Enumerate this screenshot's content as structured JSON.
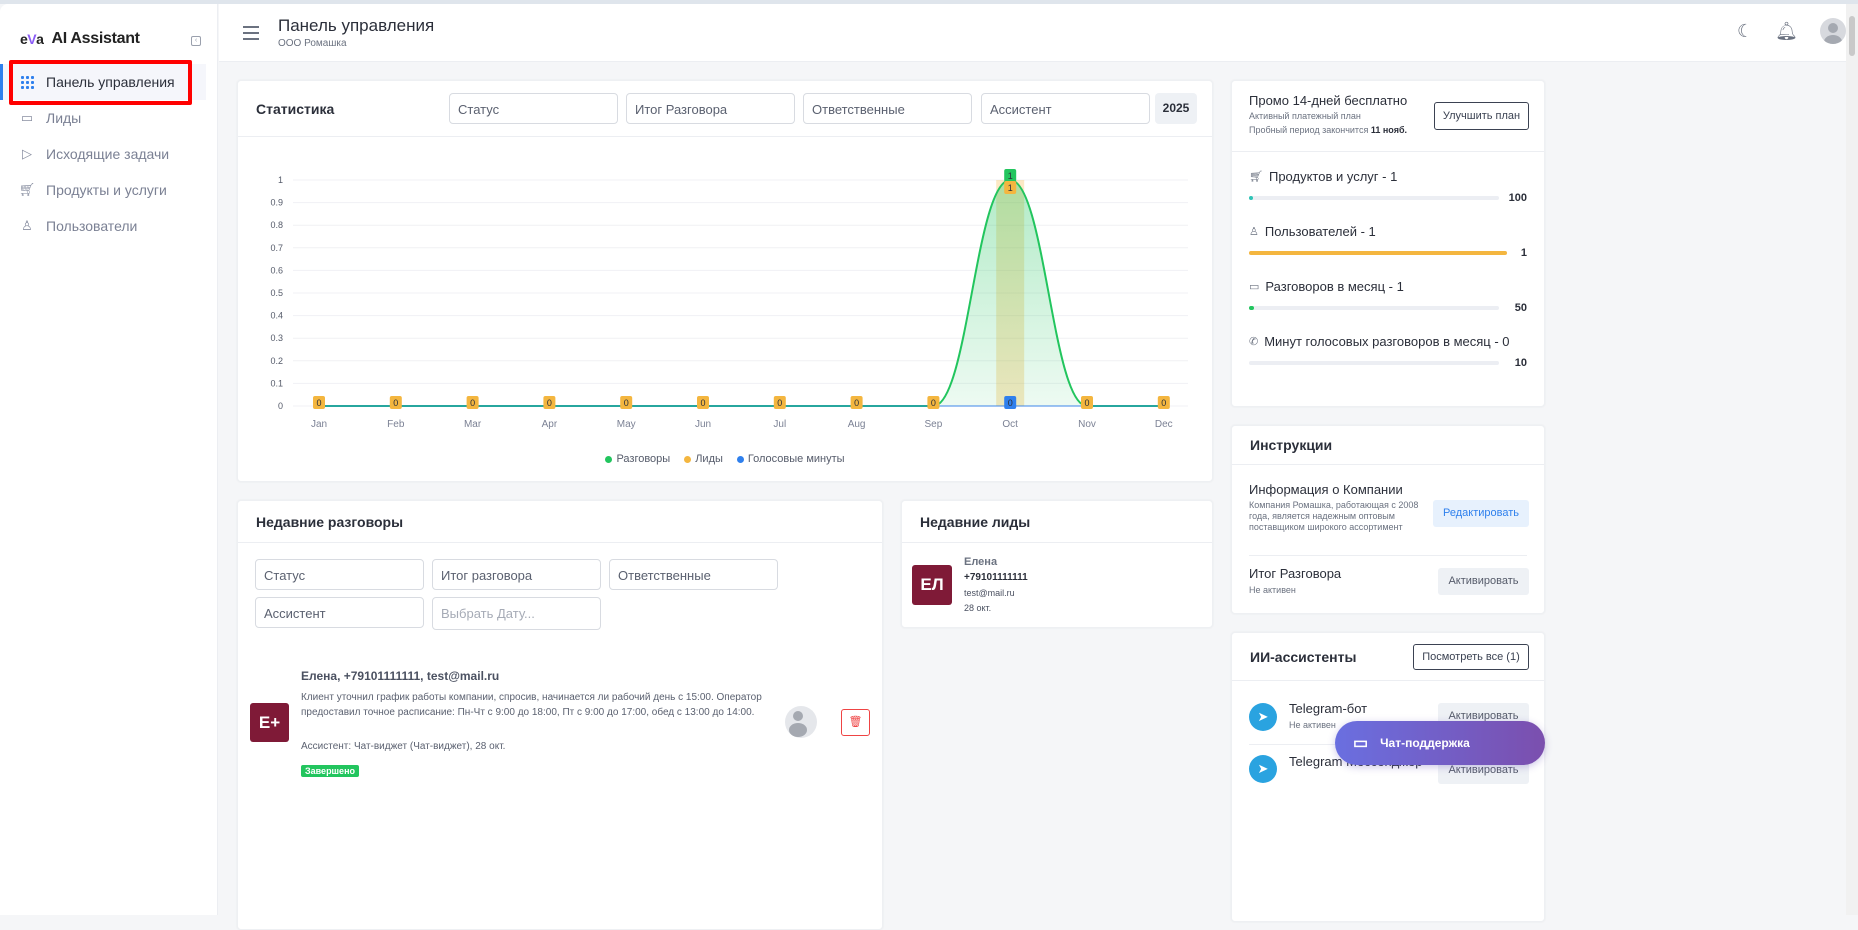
{
  "app": {
    "logo_mark": "eVa",
    "name": "AI Assistant"
  },
  "sidebar": {
    "items": [
      {
        "label": "Панель управления",
        "icon": "grid-icon",
        "active": true
      },
      {
        "label": "Лиды",
        "icon": "box-icon"
      },
      {
        "label": "Исходящие задачи",
        "icon": "send-icon"
      },
      {
        "label": "Продукты и услуги",
        "icon": "cart-icon"
      },
      {
        "label": "Пользователи",
        "icon": "user-icon"
      }
    ]
  },
  "header": {
    "title": "Панель управления",
    "subtitle": "ООО Ромашка"
  },
  "stats": {
    "title": "Статистика",
    "filters": [
      "Статус",
      "Итог Разговора",
      "Ответственные",
      "Ассистент"
    ],
    "year": "2025"
  },
  "chart_data": {
    "type": "line",
    "categories": [
      "Jan",
      "Feb",
      "Mar",
      "Apr",
      "May",
      "Jun",
      "Jul",
      "Aug",
      "Sep",
      "Oct",
      "Nov",
      "Dec"
    ],
    "series": [
      {
        "name": "Разговоры",
        "type": "area",
        "color": "#22c55e",
        "values": [
          0,
          0,
          0,
          0,
          0,
          0,
          0,
          0,
          0,
          1,
          0,
          0
        ]
      },
      {
        "name": "Лиды",
        "type": "bar",
        "color": "#f4b63f",
        "values": [
          0,
          0,
          0,
          0,
          0,
          0,
          0,
          0,
          0,
          1,
          0,
          0
        ]
      },
      {
        "name": "Голосовые минуты",
        "type": "line",
        "color": "#2f80ed",
        "values": [
          0,
          0,
          0,
          0,
          0,
          0,
          0,
          0,
          0,
          0,
          0,
          0
        ]
      }
    ],
    "yticks": [
      "0",
      "0.1",
      "0.2",
      "0.3",
      "0.4",
      "0.5",
      "0.6",
      "0.7",
      "0.8",
      "0.9",
      "1"
    ],
    "ylim": [
      0,
      1
    ],
    "grid": true,
    "legend": "bottom"
  },
  "plan": {
    "title": "Промо 14-дней бесплатно",
    "subtitle": "Активный платежный план",
    "trial_prefix": "Пробный период закончится",
    "trial_date": "11 нояб.",
    "upgrade": "Улучшить план",
    "limits": [
      {
        "label": "Продуктов и услуг - 1",
        "max": "100",
        "fraction": 0.01,
        "color": "#2ec4b6",
        "icon": "cart-icon"
      },
      {
        "label": "Пользователей - 1",
        "max": "1",
        "fraction": 1.0,
        "color": "#f4b63f",
        "icon": "user-icon"
      },
      {
        "label": "Разговоров в месяц - 1",
        "max": "50",
        "fraction": 0.02,
        "color": "#22c55e",
        "icon": "chat-icon"
      },
      {
        "label": "Минут голосовых разговоров в месяц - 0",
        "max": "10",
        "fraction": 0,
        "color": "#2f80ed",
        "icon": "phone-icon"
      }
    ]
  },
  "instructions": {
    "title": "Инструкции",
    "items": [
      {
        "title": "Информация о Компании",
        "desc": "Компания Ромашка, работающая с 2008 года, является надежным оптовым поставщиком широкого ассортимент",
        "button": "Редактировать"
      },
      {
        "title": "Итог Разговора",
        "desc": "Не активен",
        "button": "Активировать"
      }
    ]
  },
  "assistants": {
    "title": "ИИ-ассистенты",
    "view_all": "Посмотреть все (1)",
    "items": [
      {
        "name": "Telegram-бот",
        "status": "Не активен",
        "button": "Активировать"
      },
      {
        "name": "Telegram Мессенджер",
        "button": "Активировать"
      }
    ]
  },
  "recent_conversations": {
    "title": "Недавние разговоры",
    "filters": [
      "Статус",
      "Итог разговора",
      "Ответственные",
      "Ассистент"
    ],
    "date_placeholder": "Выбрать Дату...",
    "items": [
      {
        "initials": "E+",
        "title": "Елена, +79101111111, test@mail.ru",
        "summary": "Клиент уточнил график работы компании, спросив, начинается ли рабочий день с 15:00. Оператор предоставил точное расписание: Пн-Чт с 9:00 до 18:00, Пт с 9:00 до 17:00, обед с 13:00 до 14:00.",
        "meta": "Ассистент: Чат-виджет (Чат-виджет), 28 окт.",
        "status": "Завершено"
      }
    ]
  },
  "recent_leads": {
    "title": "Недавние лиды",
    "items": [
      {
        "initials": "ЕЛ",
        "name": "Елена",
        "phone": "+79101111111",
        "email": "test@mail.ru",
        "date": "28 окт."
      }
    ]
  },
  "support": {
    "label": "Чат-поддержка"
  }
}
